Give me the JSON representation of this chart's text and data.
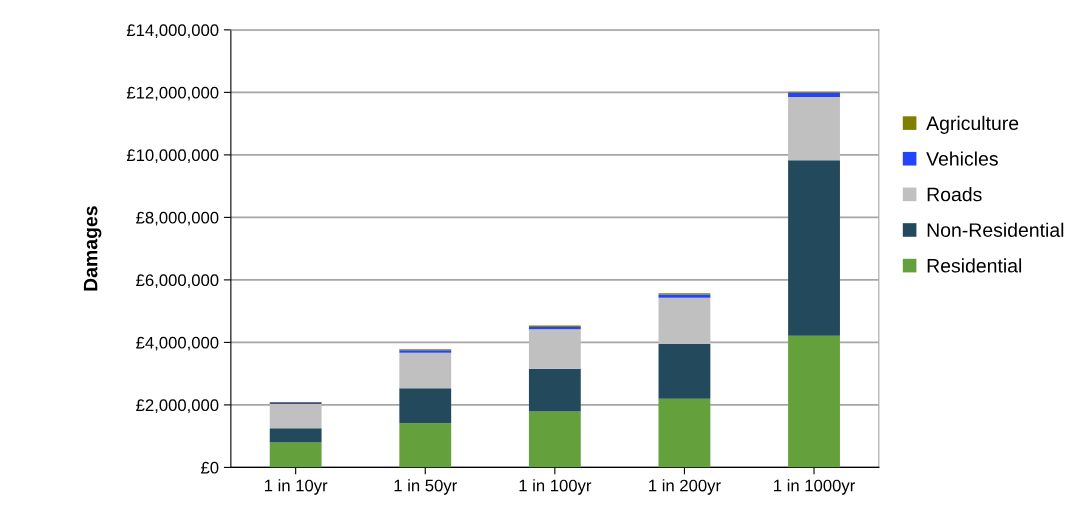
{
  "chart_data": {
    "type": "bar",
    "stacked": true,
    "ylabel": "Damages",
    "categories": [
      "1 in 10yr",
      "1 in 50yr",
      "1 in 100yr",
      "1 in 200yr",
      "1 in 1000yr"
    ],
    "series": [
      {
        "name": "Residential",
        "color": "#64a03c",
        "values": [
          800000,
          1410000,
          1790000,
          2200000,
          4210000
        ]
      },
      {
        "name": "Non-Residential",
        "color": "#234a5c",
        "values": [
          450000,
          1120000,
          1370000,
          1760000,
          5620000
        ]
      },
      {
        "name": "Roads",
        "color": "#c0c0c0",
        "values": [
          780000,
          1140000,
          1260000,
          1470000,
          2020000
        ]
      },
      {
        "name": "Vehicles",
        "color": "#2244ff",
        "values": [
          30000,
          80000,
          70000,
          100000,
          140000
        ]
      },
      {
        "name": "Agriculture",
        "color": "#7f7f00",
        "values": [
          30000,
          30000,
          50000,
          40000,
          30000
        ]
      }
    ],
    "ylim": [
      0,
      14000000
    ],
    "yticks": [
      {
        "value": 0,
        "label": "£0"
      },
      {
        "value": 2000000,
        "label": "£2,000,000"
      },
      {
        "value": 4000000,
        "label": "£4,000,000"
      },
      {
        "value": 6000000,
        "label": "£6,000,000"
      },
      {
        "value": 8000000,
        "label": "£8,000,000"
      },
      {
        "value": 10000000,
        "label": "£10,000,000"
      },
      {
        "value": 12000000,
        "label": "£12,000,000"
      },
      {
        "value": 14000000,
        "label": "£14,000,000"
      }
    ],
    "grid": "y",
    "legend": "right"
  }
}
